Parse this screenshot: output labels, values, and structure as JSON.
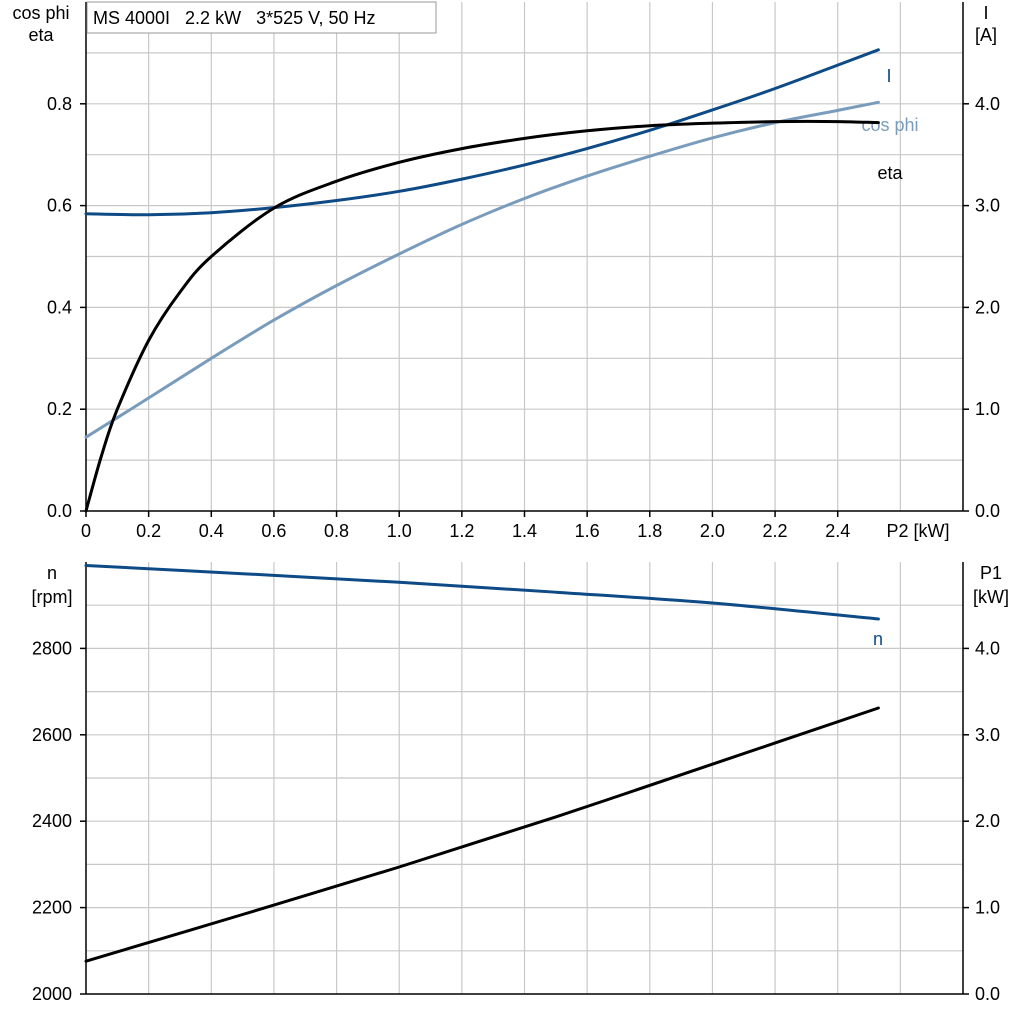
{
  "chart_data": [
    {
      "type": "line",
      "title": "MS 4000I   2.2 kW   3*525 V, 50 Hz",
      "xlabel": "P2 [kW]",
      "ylabel_left": [
        "cos phi",
        "eta"
      ],
      "ylabel_right": [
        "I",
        "[A]"
      ],
      "xlim": [
        0,
        2.8
      ],
      "ylim_left": [
        0,
        1.0
      ],
      "ylim_right": [
        0,
        5.0
      ],
      "x_ticks": [
        "0",
        "0.2",
        "0.4",
        "0.6",
        "0.8",
        "1.0",
        "1.2",
        "1.4",
        "1.6",
        "1.8",
        "2.0",
        "2.2",
        "2.4"
      ],
      "y_ticks_left": [
        "0.0",
        "0.2",
        "0.4",
        "0.6",
        "0.8"
      ],
      "y_ticks_right": [
        "0.0",
        "1.0",
        "2.0",
        "3.0",
        "4.0"
      ],
      "grid": true,
      "series": [
        {
          "name": "I",
          "axis": "right",
          "color": "#0e4a86",
          "x": [
            0,
            0.2,
            0.4,
            0.6,
            0.8,
            1.0,
            1.2,
            1.4,
            1.6,
            1.8,
            2.0,
            2.2,
            2.4,
            2.53
          ],
          "y": [
            2.92,
            2.91,
            2.93,
            2.98,
            3.05,
            3.14,
            3.26,
            3.4,
            3.56,
            3.74,
            3.94,
            4.15,
            4.38,
            4.53
          ]
        },
        {
          "name": "cos phi",
          "axis": "left",
          "color": "#7a9cbc",
          "x": [
            0,
            0.2,
            0.4,
            0.6,
            0.8,
            1.0,
            1.2,
            1.4,
            1.6,
            1.8,
            2.0,
            2.2,
            2.4,
            2.53
          ],
          "y": [
            0.145,
            0.222,
            0.3,
            0.375,
            0.443,
            0.505,
            0.563,
            0.614,
            0.658,
            0.697,
            0.733,
            0.763,
            0.787,
            0.803
          ]
        },
        {
          "name": "eta",
          "axis": "left",
          "color": "#000000",
          "x": [
            0,
            0.05,
            0.1,
            0.2,
            0.3,
            0.4,
            0.6,
            0.8,
            1.0,
            1.2,
            1.4,
            1.6,
            1.8,
            2.0,
            2.2,
            2.4,
            2.53
          ],
          "y": [
            0.0,
            0.11,
            0.2,
            0.335,
            0.43,
            0.5,
            0.595,
            0.648,
            0.685,
            0.712,
            0.732,
            0.747,
            0.757,
            0.762,
            0.765,
            0.765,
            0.763
          ]
        }
      ]
    },
    {
      "type": "line",
      "xlabel": "",
      "ylabel_left": [
        "n",
        "[rpm]"
      ],
      "ylabel_right": [
        "P1",
        "[kW]"
      ],
      "xlim": [
        0,
        2.8
      ],
      "ylim_left": [
        2000,
        3000
      ],
      "ylim_right": [
        0,
        5.0
      ],
      "y_ticks_left": [
        "2000",
        "2200",
        "2400",
        "2600",
        "2800"
      ],
      "y_ticks_right": [
        "0.0",
        "1.0",
        "2.0",
        "3.0",
        "4.0"
      ],
      "grid": true,
      "series": [
        {
          "name": "n",
          "axis": "left",
          "color": "#0e4a86",
          "x": [
            0,
            0.5,
            1.0,
            1.5,
            2.0,
            2.53
          ],
          "y": [
            2992,
            2973,
            2953,
            2930,
            2905,
            2868
          ]
        },
        {
          "name": "",
          "axis": "right",
          "color": "#000000",
          "x": [
            0,
            0.5,
            1.0,
            1.5,
            2.0,
            2.53
          ],
          "y": [
            0.38,
            0.92,
            1.47,
            2.05,
            2.66,
            3.31
          ]
        }
      ]
    }
  ]
}
